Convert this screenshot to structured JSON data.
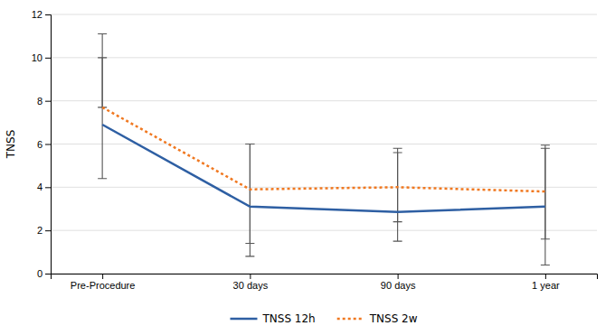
{
  "chart_data": {
    "type": "line",
    "categories": [
      "Pre-Procedure",
      "30 days",
      "90 days",
      "1 year"
    ],
    "series": [
      {
        "name": "TNSS 12h",
        "color": "#2e5fa3",
        "line_style": "solid",
        "values": [
          6.9,
          3.1,
          2.85,
          3.1
        ],
        "error_lower": [
          2.5,
          2.3,
          1.35,
          2.7
        ],
        "error_upper": [
          4.2,
          2.9,
          2.95,
          2.85
        ]
      },
      {
        "name": "TNSS 2w",
        "color": "#f07820",
        "line_style": "dotted",
        "values": [
          7.7,
          3.9,
          4.0,
          3.8
        ],
        "error_lower": [
          0.0,
          2.5,
          1.6,
          2.2
        ],
        "error_upper": [
          2.3,
          2.1,
          1.6,
          2.0
        ]
      }
    ],
    "y_label": "TNSS",
    "ylim": [
      0,
      12
    ],
    "yticks": [
      0,
      2,
      4,
      6,
      8,
      10,
      12
    ],
    "grid": true,
    "legend": "bottom"
  }
}
